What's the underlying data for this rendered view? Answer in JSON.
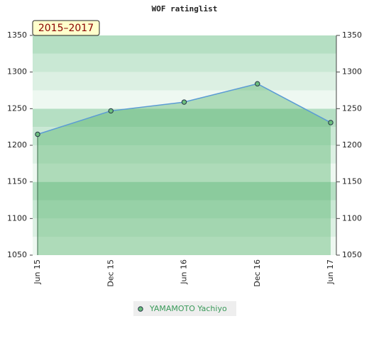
{
  "chart_data": {
    "type": "line",
    "title": "WOF ratinglist",
    "badge": "2015–2017",
    "categories": [
      "Jun 15",
      "Dec 15",
      "Jun 16",
      "Dec 16",
      "Jun 17"
    ],
    "series": [
      {
        "name": "YAMAMOTO Yachiyo",
        "color": "#6cbf7e",
        "line_color": "#5b9bd5",
        "values": [
          1215,
          1247,
          1259,
          1284,
          1231
        ]
      }
    ],
    "ylim": [
      1050,
      1350
    ],
    "yticks": [
      1050,
      1100,
      1150,
      1200,
      1250,
      1300,
      1350
    ],
    "y2lim": [
      1050,
      1350
    ],
    "y2ticks": [
      1050,
      1100,
      1150,
      1200,
      1250,
      1300,
      1350
    ]
  }
}
